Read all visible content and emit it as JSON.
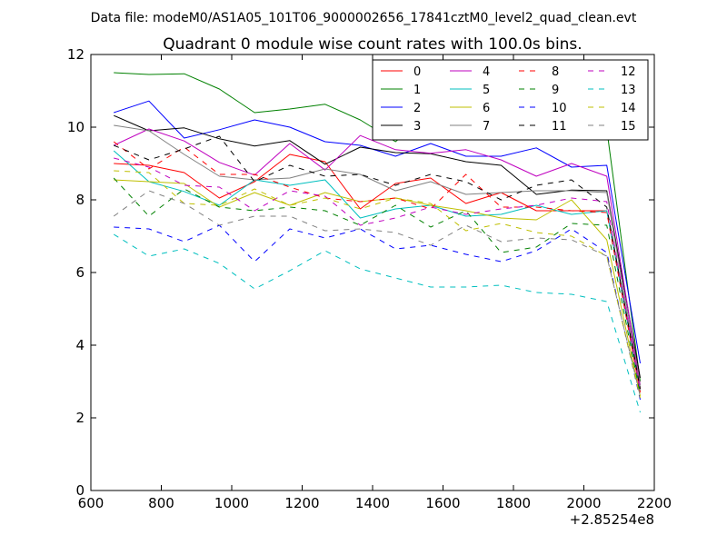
{
  "chart_data": {
    "type": "line",
    "suptitle": "Data file: modeM0/AS1A05_101T06_9000002656_17841cztM0_level2_quad_clean.evt",
    "title": "Quadrant 0 module wise count rates with 100.0s bins.",
    "xlabel": "",
    "ylabel": "",
    "x_offset_label": "+2.85254e8",
    "xlim": [
      600,
      2200
    ],
    "ylim": [
      0,
      12
    ],
    "xticks": [
      600,
      800,
      1000,
      1200,
      1400,
      1600,
      1800,
      2000,
      2200
    ],
    "yticks": [
      0,
      2,
      4,
      6,
      8,
      10,
      12
    ],
    "xtick_labels": [
      "600",
      "800",
      "1000",
      "1200",
      "1400",
      "1600",
      "1800",
      "2000",
      "2200"
    ],
    "ytick_labels": [
      "0",
      "2",
      "4",
      "6",
      "8",
      "10",
      "12"
    ],
    "grid": false,
    "legend_position": "top-right",
    "legend_columns": 4,
    "x": [
      665,
      765,
      865,
      965,
      1065,
      1165,
      1265,
      1365,
      1465,
      1565,
      1665,
      1765,
      1865,
      1965,
      2065,
      2160
    ],
    "series": [
      {
        "name": "0",
        "color": "#ff0000",
        "dash": "solid",
        "values": [
          9.0,
          8.95,
          8.75,
          8.05,
          8.5,
          9.25,
          9.05,
          7.75,
          8.45,
          8.6,
          7.9,
          8.2,
          7.7,
          7.7,
          7.7,
          2.8
        ]
      },
      {
        "name": "1",
        "color": "#008000",
        "dash": "solid",
        "values": [
          11.5,
          11.45,
          11.47,
          11.05,
          10.4,
          10.5,
          10.63,
          10.2,
          9.6,
          10.4,
          10.05,
          10.2,
          9.8,
          9.7,
          9.95,
          3.0
        ]
      },
      {
        "name": "2",
        "color": "#0000ff",
        "dash": "solid",
        "values": [
          10.4,
          10.72,
          9.7,
          9.93,
          10.2,
          10.0,
          9.6,
          9.5,
          9.2,
          9.55,
          9.2,
          9.2,
          9.43,
          8.9,
          8.95,
          3.5
        ]
      },
      {
        "name": "3",
        "color": "#000000",
        "dash": "solid",
        "values": [
          10.32,
          9.9,
          9.98,
          9.68,
          9.48,
          9.63,
          8.98,
          9.45,
          9.3,
          9.27,
          9.05,
          8.95,
          8.15,
          8.27,
          8.25,
          3.1
        ]
      },
      {
        "name": "4",
        "color": "#bf00bf",
        "dash": "solid",
        "values": [
          9.5,
          9.95,
          9.62,
          9.03,
          8.68,
          9.55,
          8.82,
          9.77,
          9.38,
          9.28,
          9.38,
          9.1,
          8.65,
          9.0,
          8.65,
          2.9
        ]
      },
      {
        "name": "5",
        "color": "#00bfbf",
        "dash": "solid",
        "values": [
          9.35,
          8.5,
          8.23,
          7.85,
          8.55,
          8.4,
          8.55,
          7.5,
          7.75,
          7.85,
          7.55,
          7.6,
          7.85,
          7.6,
          7.7,
          2.75
        ]
      },
      {
        "name": "6",
        "color": "#bfbf00",
        "dash": "solid",
        "values": [
          8.55,
          8.5,
          8.45,
          7.8,
          8.2,
          7.85,
          8.2,
          7.95,
          8.05,
          7.85,
          7.7,
          7.5,
          7.45,
          8.0,
          6.9,
          2.6
        ]
      },
      {
        "name": "7",
        "color": "#808080",
        "dash": "solid",
        "values": [
          10.05,
          9.9,
          9.25,
          8.65,
          8.55,
          8.6,
          8.85,
          8.7,
          8.25,
          8.5,
          8.15,
          8.2,
          8.25,
          8.25,
          8.2,
          2.85
        ]
      },
      {
        "name": "8",
        "color": "#ff0000",
        "dash": "dashed",
        "values": [
          9.6,
          8.85,
          9.45,
          8.7,
          8.7,
          8.35,
          8.05,
          7.95,
          8.05,
          7.75,
          8.7,
          7.8,
          7.8,
          7.7,
          7.65,
          2.7
        ]
      },
      {
        "name": "9",
        "color": "#008000",
        "dash": "dashed",
        "values": [
          8.6,
          7.55,
          8.3,
          7.8,
          7.7,
          7.8,
          7.7,
          7.3,
          7.85,
          7.25,
          7.7,
          6.55,
          6.7,
          7.35,
          7.3,
          2.65
        ]
      },
      {
        "name": "10",
        "color": "#0000ff",
        "dash": "dashed",
        "values": [
          7.25,
          7.2,
          6.85,
          7.3,
          6.3,
          7.2,
          6.95,
          7.2,
          6.65,
          6.75,
          6.5,
          6.3,
          6.6,
          7.2,
          6.55,
          2.5
        ]
      },
      {
        "name": "11",
        "color": "#000000",
        "dash": "dashed",
        "values": [
          9.5,
          9.1,
          9.4,
          9.75,
          8.5,
          8.95,
          8.65,
          8.7,
          8.4,
          8.7,
          8.5,
          8.0,
          8.4,
          8.55,
          7.8,
          2.8
        ]
      },
      {
        "name": "12",
        "color": "#bf00bf",
        "dash": "dashed",
        "values": [
          9.15,
          8.9,
          8.4,
          8.35,
          7.7,
          8.25,
          8.1,
          7.3,
          7.5,
          7.8,
          7.6,
          7.75,
          7.85,
          8.05,
          7.95,
          2.75
        ]
      },
      {
        "name": "13",
        "color": "#00bfbf",
        "dash": "dashed",
        "values": [
          7.05,
          6.45,
          6.65,
          6.25,
          5.55,
          6.05,
          6.6,
          6.1,
          5.85,
          5.6,
          5.6,
          5.65,
          5.45,
          5.4,
          5.2,
          2.15
        ]
      },
      {
        "name": "14",
        "color": "#bfbf00",
        "dash": "dashed",
        "values": [
          8.8,
          8.75,
          7.9,
          7.85,
          8.3,
          7.85,
          8.05,
          7.75,
          8.05,
          7.9,
          7.15,
          7.35,
          7.1,
          7.0,
          6.45,
          2.55
        ]
      },
      {
        "name": "15",
        "color": "#808080",
        "dash": "dashed",
        "values": [
          7.55,
          8.25,
          7.9,
          7.3,
          7.55,
          7.55,
          7.15,
          7.2,
          7.1,
          6.75,
          7.3,
          6.85,
          6.95,
          6.9,
          6.45,
          2.6
        ]
      }
    ]
  }
}
